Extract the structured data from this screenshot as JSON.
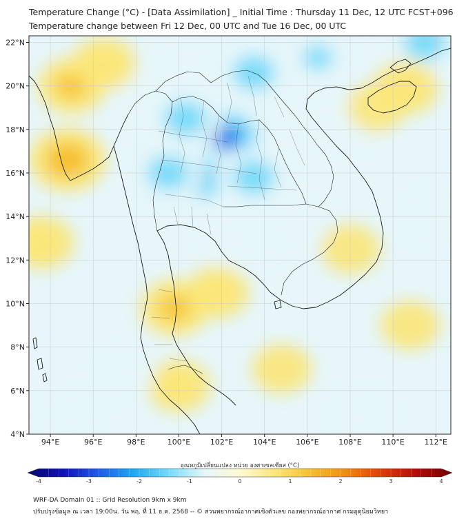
{
  "title": {
    "line1": "Temperature Change (°C) - [Data Assimilation] _ Initial Time : Thursday 11 Dec, 12 UTC FCST+096",
    "line2": "Temperature change between Fri 12 Dec, 00 UTC and Tue 16 Dec, 00 UTC"
  },
  "map": {
    "lat_labels": [
      "22°N",
      "20°N",
      "18°N",
      "16°N",
      "14°N",
      "12°N",
      "10°N",
      "8°N",
      "6°N",
      "4°N"
    ],
    "lon_labels": [
      "94°E",
      "96°E",
      "98°E",
      "100°E",
      "102°E",
      "104°E",
      "106°E",
      "108°E",
      "110°E",
      "112°E"
    ],
    "lat_range": [
      4,
      22.3
    ],
    "lon_range": [
      93.0,
      112.7
    ]
  },
  "colorbar": {
    "title": "อุณหภูมิเปลี่ยนแปลง หน่วย องศาเซลเซียส (°C)",
    "ticks": [
      "-4",
      "-3",
      "-2",
      "-1",
      "0",
      "1",
      "2",
      "3",
      "4"
    ],
    "range": [
      -4,
      4
    ],
    "colors": [
      "#08086a",
      "#1010b8",
      "#1e5ce8",
      "#1ea8f0",
      "#78dcfa",
      "#e6f6fa",
      "#fffad2",
      "#fbe678",
      "#f5c030",
      "#f08c10",
      "#e03c08",
      "#b40a0a",
      "#6e0000"
    ]
  },
  "field": {
    "anomalies": [
      {
        "lon": 102.2,
        "lat": 17.6,
        "value": -2.4
      },
      {
        "lon": 100.3,
        "lat": 18.5,
        "value": -1.6
      },
      {
        "lon": 101.0,
        "lat": 15.8,
        "value": -1.8
      },
      {
        "lon": 103.5,
        "lat": 15.8,
        "value": -1.6
      },
      {
        "lon": 99.5,
        "lat": 16.0,
        "value": -1.5
      },
      {
        "lon": 103.5,
        "lat": 20.6,
        "value": -1.6
      },
      {
        "lon": 106.5,
        "lat": 21.3,
        "value": -1.2
      },
      {
        "lon": 111.5,
        "lat": 22.0,
        "value": -1.6
      },
      {
        "lon": 105.5,
        "lat": 13.3,
        "value": -0.9
      },
      {
        "lon": 102.5,
        "lat": 13.0,
        "value": -0.8
      },
      {
        "lon": 107.5,
        "lat": 18.3,
        "value": -0.8
      },
      {
        "lon": 100.5,
        "lat": 21.3,
        "value": -0.8
      },
      {
        "lon": 98.3,
        "lat": 20.0,
        "value": -0.6
      },
      {
        "lon": 95.0,
        "lat": 20.0,
        "value": 1.1
      },
      {
        "lon": 94.8,
        "lat": 16.6,
        "value": 1.6
      },
      {
        "lon": 96.5,
        "lat": 21.0,
        "value": 0.9
      },
      {
        "lon": 93.6,
        "lat": 12.8,
        "value": 0.9
      },
      {
        "lon": 99.8,
        "lat": 9.8,
        "value": 1.1
      },
      {
        "lon": 101.8,
        "lat": 10.5,
        "value": 0.8
      },
      {
        "lon": 100.0,
        "lat": 6.2,
        "value": 0.8
      },
      {
        "lon": 104.8,
        "lat": 7.0,
        "value": 0.6
      },
      {
        "lon": 108.0,
        "lat": 12.5,
        "value": 0.6
      },
      {
        "lon": 110.8,
        "lat": 9.0,
        "value": 0.6
      },
      {
        "lon": 110.6,
        "lat": 19.9,
        "value": 0.9
      },
      {
        "lon": 109.2,
        "lat": 19.0,
        "value": 0.5
      },
      {
        "lon": 97.5,
        "lat": 6.8,
        "value": -0.5
      },
      {
        "lon": 94.8,
        "lat": 4.6,
        "value": -0.4
      },
      {
        "lon": 108.5,
        "lat": 4.7,
        "value": -0.4
      },
      {
        "lon": 111.8,
        "lat": 14.0,
        "value": -0.4
      }
    ]
  },
  "footer": {
    "line1": "WRF-DA Domain 01 :: Grid Resolution 9km x 9km",
    "line2": "ปรับปรุงข้อมูล ณ เวลา 19:00น. วัน พฤ. ที่ 11 ธ.ค. 2568 -- © ส่วนพยากรณ์อากาศเชิงตัวเลข กองพยากรณ์อากาศ กรมอุตุนิยมวิทยา"
  }
}
